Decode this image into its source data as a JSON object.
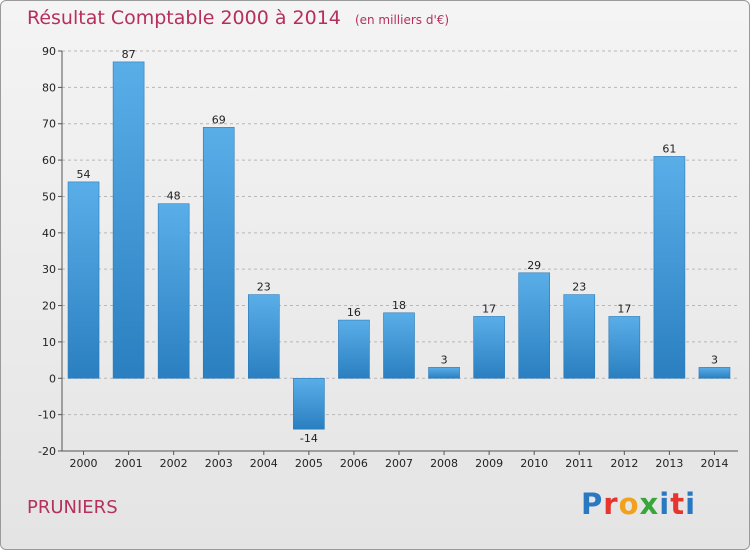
{
  "header": {
    "title": "Résultat Comptable 2000 à 2014",
    "unit": "(en milliers d'€)"
  },
  "footer": {
    "commune": "PRUNIERS",
    "logo": "Proxiti"
  },
  "colors": {
    "title": "#b5305c",
    "bar_top": "#5aaee8",
    "bar_bottom": "#2a7fc0",
    "logo_letters": [
      "#2b78c2",
      "#e8342e",
      "#f2a11c",
      "#3aa63a",
      "#2b78c2",
      "#e8342e",
      "#2b78c2"
    ]
  },
  "chart_data": {
    "type": "bar",
    "categories": [
      "2000",
      "2001",
      "2002",
      "2003",
      "2004",
      "2005",
      "2006",
      "2007",
      "2008",
      "2009",
      "2010",
      "2011",
      "2012",
      "2013",
      "2014"
    ],
    "values": [
      54,
      87,
      48,
      69,
      23,
      -14,
      16,
      18,
      3,
      17,
      29,
      23,
      17,
      61,
      3
    ],
    "value_labels": [
      "54",
      "87",
      "48",
      "69",
      "23",
      "-14",
      "16",
      "18",
      "3",
      "17",
      "29",
      "23",
      "17",
      "61",
      "3"
    ],
    "title": "Résultat Comptable 2000 à 2014",
    "xlabel": "",
    "ylabel": "",
    "ylim": [
      -20,
      90
    ],
    "yticks": [
      -20,
      -10,
      0,
      10,
      20,
      30,
      40,
      50,
      60,
      70,
      80,
      90
    ],
    "ytick_labels": [
      "-20",
      "-10",
      "0",
      "10",
      "20",
      "30",
      "40",
      "50",
      "60",
      "70",
      "80",
      "90"
    ],
    "grid": "horizontal-dashed",
    "legend": "none"
  }
}
